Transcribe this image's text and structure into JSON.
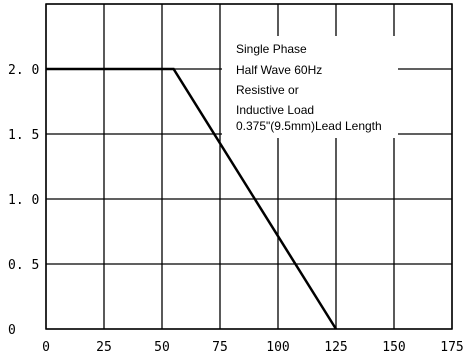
{
  "chart_data": {
    "type": "line",
    "title": "",
    "xlabel": "",
    "ylabel": "",
    "xlim": [
      0,
      175
    ],
    "ylim": [
      0,
      2.5
    ],
    "grid": true,
    "x_ticks": [
      0,
      25,
      50,
      75,
      100,
      125,
      150,
      175
    ],
    "x_tick_labels": [
      "0",
      "25",
      "50",
      "75",
      "100",
      "125",
      "150",
      "175"
    ],
    "y_ticks": [
      0,
      0.5,
      1.0,
      1.5,
      2.0
    ],
    "y_tick_labels": [
      "0",
      "0. 5",
      "1. 0",
      "1. 5",
      "2. 0"
    ],
    "series": [
      {
        "x": [
          0,
          55,
          125
        ],
        "y": [
          2.0,
          2.0,
          0
        ],
        "color": "#000000"
      }
    ],
    "annotation_lines": [
      "Single Phase",
      "Half Wave 60Hz",
      "Resistive or",
      "Inductive Load",
      "0.375\"(9.5mm)Lead Length"
    ]
  }
}
